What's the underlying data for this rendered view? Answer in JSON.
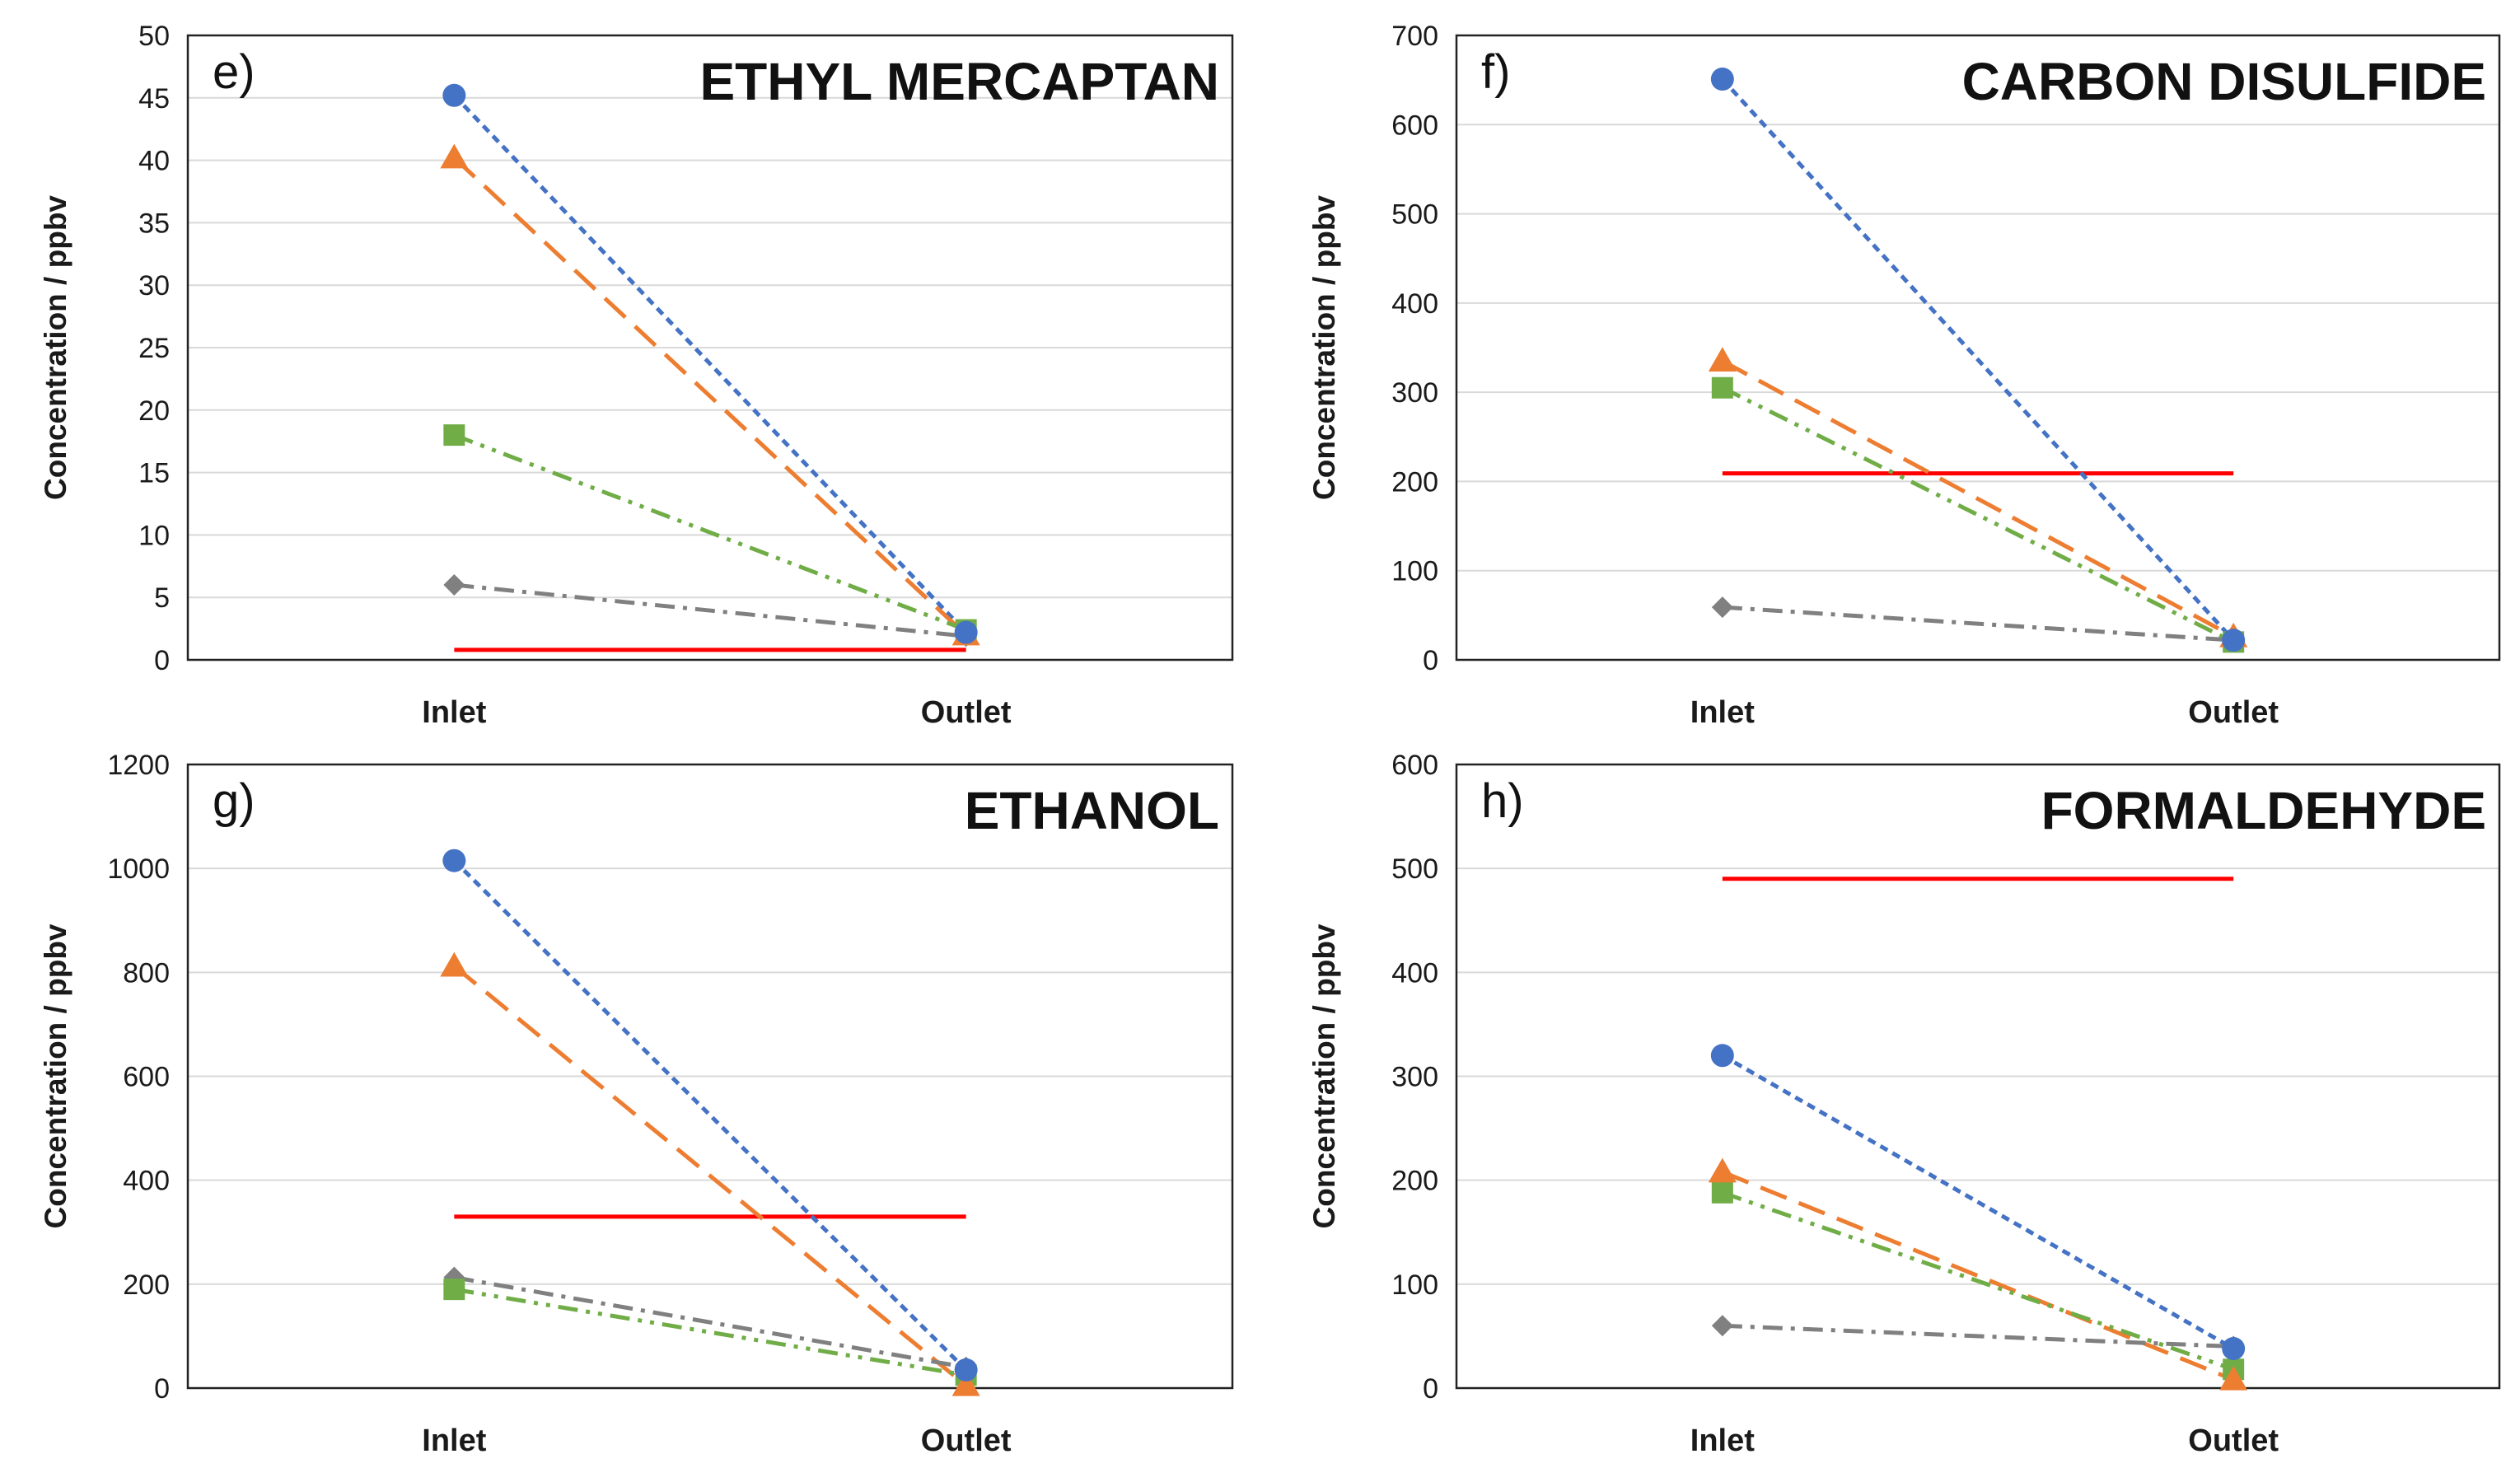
{
  "figure": {
    "description_free": true
  },
  "chart_data": [
    {
      "type": "line",
      "panel": "e)",
      "title": "ETHYL MERCAPTAN",
      "xlabel": "",
      "ylabel": "Concentration / ppbv",
      "categories": [
        "Inlet",
        "Outlet"
      ],
      "ylim": [
        0,
        50
      ],
      "yticks": [
        0,
        5,
        10,
        15,
        20,
        25,
        30,
        35,
        40,
        45,
        50
      ],
      "grid": true,
      "series": [
        {
          "name": "series-1",
          "marker": "circle",
          "color": "#4472C4",
          "dash": "dotted",
          "values": [
            45.2,
            2.2
          ]
        },
        {
          "name": "series-2",
          "marker": "triangle",
          "color": "#ED7D31",
          "dash": "long-dash",
          "values": [
            40.2,
            2.0
          ]
        },
        {
          "name": "series-3",
          "marker": "square",
          "color": "#70AD47",
          "dash": "dash-dot-dot",
          "values": [
            18.0,
            2.4
          ]
        },
        {
          "name": "series-4",
          "marker": "diamond",
          "color": "#808080",
          "dash": "dash-dot",
          "values": [
            6.0,
            1.9
          ]
        }
      ],
      "reference_line": {
        "color": "#FF0000",
        "value": 0.8
      }
    },
    {
      "type": "line",
      "panel": "f)",
      "title": "CARBON DISULFIDE",
      "xlabel": "",
      "ylabel": "Concentration / ppbv",
      "categories": [
        "Inlet",
        "Outlet"
      ],
      "ylim": [
        0,
        700
      ],
      "yticks": [
        0,
        100,
        200,
        300,
        400,
        500,
        600,
        700
      ],
      "grid": true,
      "series": [
        {
          "name": "series-1",
          "marker": "circle",
          "color": "#4472C4",
          "dash": "dotted",
          "values": [
            651,
            22
          ]
        },
        {
          "name": "series-2",
          "marker": "triangle",
          "color": "#ED7D31",
          "dash": "long-dash",
          "values": [
            335,
            26
          ]
        },
        {
          "name": "series-3",
          "marker": "square",
          "color": "#70AD47",
          "dash": "dash-dot-dot",
          "values": [
            305,
            20
          ]
        },
        {
          "name": "series-4",
          "marker": "diamond",
          "color": "#808080",
          "dash": "dash-dot",
          "values": [
            59,
            22
          ]
        }
      ],
      "reference_line": {
        "color": "#FF0000",
        "value": 209
      }
    },
    {
      "type": "line",
      "panel": "g)",
      "title": "ETHANOL",
      "xlabel": "",
      "ylabel": "Concentration / ppbv",
      "categories": [
        "Inlet",
        "Outlet"
      ],
      "ylim": [
        0,
        1200
      ],
      "yticks": [
        0,
        200,
        400,
        600,
        800,
        1000,
        1200
      ],
      "grid": true,
      "series": [
        {
          "name": "series-1",
          "marker": "circle",
          "color": "#4472C4",
          "dash": "dotted",
          "values": [
            1015,
            35
          ]
        },
        {
          "name": "series-2",
          "marker": "triangle",
          "color": "#ED7D31",
          "dash": "long-dash",
          "values": [
            812,
            5
          ]
        },
        {
          "name": "series-3",
          "marker": "square",
          "color": "#70AD47",
          "dash": "dash-dot-dot",
          "values": [
            190,
            25
          ]
        },
        {
          "name": "series-4",
          "marker": "diamond",
          "color": "#808080",
          "dash": "dash-dot",
          "values": [
            213,
            40
          ]
        }
      ],
      "reference_line": {
        "color": "#FF0000",
        "value": 330
      }
    },
    {
      "type": "line",
      "panel": "h)",
      "title": "FORMALDEHYDE",
      "xlabel": "",
      "ylabel": "Concentration / ppbv",
      "categories": [
        "Inlet",
        "Outlet"
      ],
      "ylim": [
        0,
        600
      ],
      "yticks": [
        0,
        100,
        200,
        300,
        400,
        500,
        600
      ],
      "grid": true,
      "series": [
        {
          "name": "series-1",
          "marker": "circle",
          "color": "#4472C4",
          "dash": "dotted",
          "values": [
            320,
            38
          ]
        },
        {
          "name": "series-2",
          "marker": "triangle",
          "color": "#ED7D31",
          "dash": "long-dash",
          "values": [
            208,
            8
          ]
        },
        {
          "name": "series-3",
          "marker": "square",
          "color": "#70AD47",
          "dash": "dash-dot-dot",
          "values": [
            188,
            18
          ]
        },
        {
          "name": "series-4",
          "marker": "diamond",
          "color": "#808080",
          "dash": "dash-dot",
          "values": [
            60,
            40
          ]
        }
      ],
      "reference_line": {
        "color": "#FF0000",
        "value": 490
      }
    }
  ]
}
